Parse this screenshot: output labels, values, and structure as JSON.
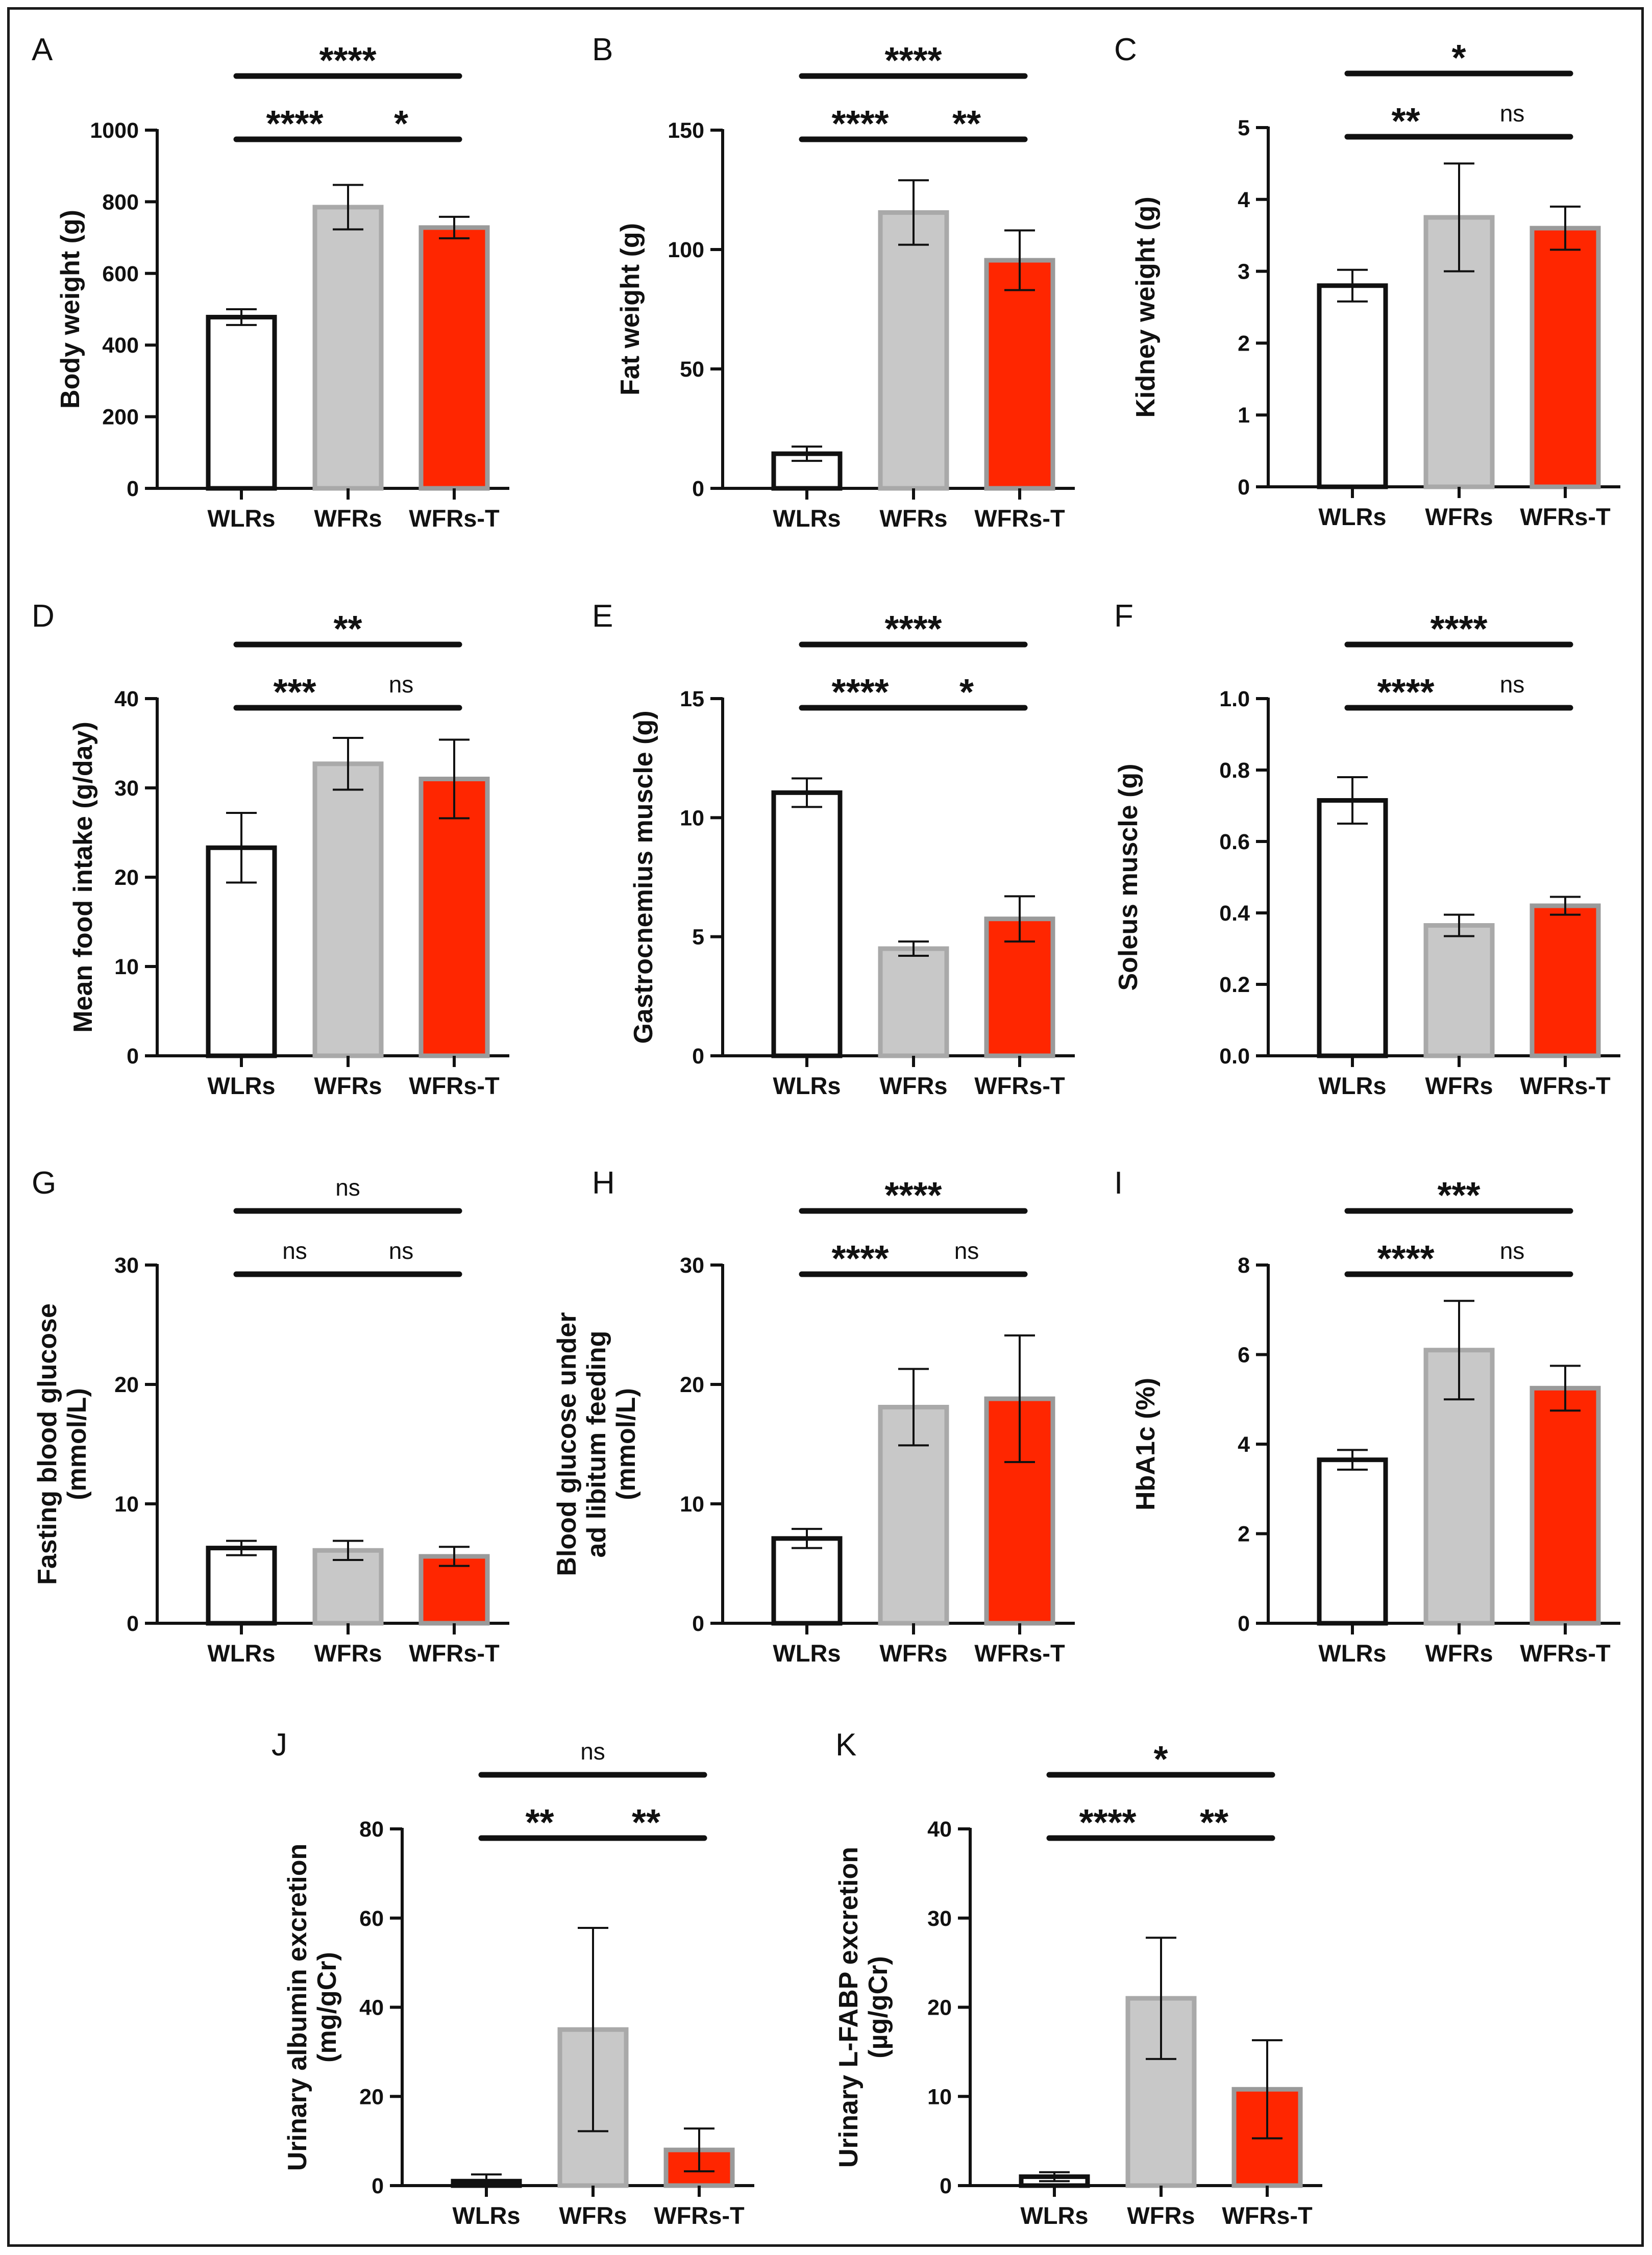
{
  "colors": {
    "axis": "#111111",
    "wlrs_fill": "#ffffff",
    "wlrs_stroke": "#111111",
    "wfrs_fill": "#c8c8c8",
    "wfrs_stroke": "#a9a9a9",
    "wfrst_fill": "#ff2600",
    "wfrst_stroke": "#9a9a9a"
  },
  "chart_data": [
    {
      "id": "A",
      "type": "bar",
      "letter": "A",
      "ylabel": [
        "Body weight (g)"
      ],
      "categories": [
        "WLRs",
        "WFRs",
        "WFRs-T"
      ],
      "values": [
        478,
        785,
        728
      ],
      "errors": [
        22,
        62,
        30
      ],
      "ylim": [
        0,
        1000
      ],
      "yticks": [
        "0",
        "200",
        "400",
        "600",
        "800",
        "1000"
      ],
      "significance": [
        {
          "pair": "WLRs-WFRs",
          "label": "****"
        },
        {
          "pair": "WFRs-WFRs-T",
          "label": "*"
        },
        {
          "pair": "WLRs-WFRs-T",
          "label": "****"
        }
      ]
    },
    {
      "id": "B",
      "type": "bar",
      "letter": "B",
      "ylabel": [
        "Fat weight (g)"
      ],
      "categories": [
        "WLRs",
        "WFRs",
        "WFRs-T"
      ],
      "values": [
        14.5,
        115.5,
        95.5
      ],
      "errors": [
        3,
        13.5,
        12.5
      ],
      "ylim": [
        0,
        150
      ],
      "yticks": [
        "0",
        "50",
        "100",
        "150"
      ],
      "significance": [
        {
          "pair": "WLRs-WFRs",
          "label": "****"
        },
        {
          "pair": "WFRs-WFRs-T",
          "label": "**"
        },
        {
          "pair": "WLRs-WFRs-T",
          "label": "****"
        }
      ]
    },
    {
      "id": "C",
      "type": "bar",
      "letter": "C",
      "ylabel": [
        "Kidney weight (g)"
      ],
      "categories": [
        "WLRs",
        "WFRs",
        "WFRs-T"
      ],
      "values": [
        2.8,
        3.75,
        3.6
      ],
      "errors": [
        0.22,
        0.75,
        0.3
      ],
      "ylim": [
        0,
        5
      ],
      "yticks": [
        "0",
        "1",
        "2",
        "3",
        "4",
        "5"
      ],
      "significance": [
        {
          "pair": "WLRs-WFRs",
          "label": "**"
        },
        {
          "pair": "WFRs-WFRs-T",
          "label": "ns"
        },
        {
          "pair": "WLRs-WFRs-T",
          "label": "*"
        }
      ]
    },
    {
      "id": "D",
      "type": "bar",
      "letter": "D",
      "ylabel": [
        "Mean food intake (g/day)"
      ],
      "categories": [
        "WLRs",
        "WFRs",
        "WFRs-T"
      ],
      "values": [
        23.3,
        32.7,
        31.0
      ],
      "errors": [
        3.9,
        2.9,
        4.4
      ],
      "ylim": [
        0,
        40
      ],
      "yticks": [
        "0",
        "10",
        "20",
        "30",
        "40"
      ],
      "significance": [
        {
          "pair": "WLRs-WFRs",
          "label": "***"
        },
        {
          "pair": "WFRs-WFRs-T",
          "label": "ns"
        },
        {
          "pair": "WLRs-WFRs-T",
          "label": "**"
        }
      ]
    },
    {
      "id": "E",
      "type": "bar",
      "letter": "E",
      "ylabel": [
        "Gastrocnemius muscle (g)"
      ],
      "categories": [
        "WLRs",
        "WFRs",
        "WFRs-T"
      ],
      "values": [
        11.05,
        4.5,
        5.75
      ],
      "errors": [
        0.6,
        0.3,
        0.95
      ],
      "ylim": [
        0,
        15
      ],
      "yticks": [
        "0",
        "5",
        "10",
        "15"
      ],
      "significance": [
        {
          "pair": "WLRs-WFRs",
          "label": "****"
        },
        {
          "pair": "WFRs-WFRs-T",
          "label": "*"
        },
        {
          "pair": "WLRs-WFRs-T",
          "label": "****"
        }
      ]
    },
    {
      "id": "F",
      "type": "bar",
      "letter": "F",
      "ylabel": [
        "Soleus muscle  (g)"
      ],
      "categories": [
        "WLRs",
        "WFRs",
        "WFRs-T"
      ],
      "values": [
        0.715,
        0.365,
        0.42
      ],
      "errors": [
        0.065,
        0.03,
        0.025
      ],
      "ylim": [
        0,
        1.0
      ],
      "yticks": [
        "0.0",
        "0.2",
        "0.4",
        "0.6",
        "0.8",
        "1.0"
      ],
      "significance": [
        {
          "pair": "WLRs-WFRs",
          "label": "****"
        },
        {
          "pair": "WFRs-WFRs-T",
          "label": "ns"
        },
        {
          "pair": "WLRs-WFRs-T",
          "label": "****"
        }
      ]
    },
    {
      "id": "G",
      "type": "bar",
      "letter": "G",
      "ylabel": [
        "Fasting blood glucose",
        "(mmol/L)"
      ],
      "categories": [
        "WLRs",
        "WFRs",
        "WFRs-T"
      ],
      "values": [
        6.3,
        6.1,
        5.6
      ],
      "errors": [
        0.6,
        0.8,
        0.8
      ],
      "ylim": [
        0,
        30
      ],
      "yticks": [
        "0",
        "10",
        "20",
        "30"
      ],
      "significance": [
        {
          "pair": "WLRs-WFRs",
          "label": "ns"
        },
        {
          "pair": "WFRs-WFRs-T",
          "label": "ns"
        },
        {
          "pair": "WLRs-WFRs-T",
          "label": "ns"
        }
      ]
    },
    {
      "id": "H",
      "type": "bar",
      "letter": "H",
      "ylabel": [
        "Blood glucose under",
        "ad libitum feeding",
        "(mmol/L)"
      ],
      "categories": [
        "WLRs",
        "WFRs",
        "WFRs-T"
      ],
      "values": [
        7.1,
        18.1,
        18.8
      ],
      "errors": [
        0.8,
        3.2,
        5.3
      ],
      "ylim": [
        0,
        30
      ],
      "yticks": [
        "0",
        "10",
        "20",
        "30"
      ],
      "significance": [
        {
          "pair": "WLRs-WFRs",
          "label": "****"
        },
        {
          "pair": "WFRs-WFRs-T",
          "label": "ns"
        },
        {
          "pair": "WLRs-WFRs-T",
          "label": "****"
        }
      ]
    },
    {
      "id": "I",
      "type": "bar",
      "letter": "I",
      "ylabel": [
        "HbA1c (%)"
      ],
      "categories": [
        "WLRs",
        "WFRs",
        "WFRs-T"
      ],
      "values": [
        3.65,
        6.1,
        5.25
      ],
      "errors": [
        0.22,
        1.1,
        0.5
      ],
      "ylim": [
        0,
        8
      ],
      "yticks": [
        "0",
        "2",
        "4",
        "6",
        "8"
      ],
      "significance": [
        {
          "pair": "WLRs-WFRs",
          "label": "****"
        },
        {
          "pair": "WFRs-WFRs-T",
          "label": "ns"
        },
        {
          "pair": "WLRs-WFRs-T",
          "label": "***"
        }
      ]
    },
    {
      "id": "J",
      "type": "bar",
      "letter": "J",
      "ylabel": [
        "Urinary albumin excretion",
        "(mg/gCr)"
      ],
      "categories": [
        "WLRs",
        "WFRs",
        "WFRs-T"
      ],
      "values": [
        1.0,
        35.0,
        8.0
      ],
      "errors": [
        1.5,
        22.8,
        4.8
      ],
      "ylim": [
        0,
        80
      ],
      "yticks": [
        "0",
        "20",
        "40",
        "60",
        "80"
      ],
      "significance": [
        {
          "pair": "WLRs-WFRs",
          "label": "**"
        },
        {
          "pair": "WFRs-WFRs-T",
          "label": "**"
        },
        {
          "pair": "WLRs-WFRs-T",
          "label": "ns"
        }
      ]
    },
    {
      "id": "K",
      "type": "bar",
      "letter": "K",
      "ylabel": [
        "Urinary L-FABP excretion",
        "(µg/gCr)"
      ],
      "categories": [
        "WLRs",
        "WFRs",
        "WFRs-T"
      ],
      "values": [
        1.0,
        21.0,
        10.8
      ],
      "errors": [
        0.5,
        6.8,
        5.5
      ],
      "ylim": [
        0,
        40
      ],
      "yticks": [
        "0",
        "10",
        "20",
        "30",
        "40"
      ],
      "significance": [
        {
          "pair": "WLRs-WFRs",
          "label": "****"
        },
        {
          "pair": "WFRs-WFRs-T",
          "label": "**"
        },
        {
          "pair": "WLRs-WFRs-T",
          "label": "*"
        }
      ]
    }
  ]
}
